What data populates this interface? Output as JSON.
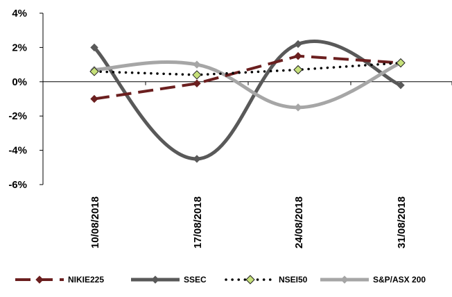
{
  "chart_data": {
    "type": "line",
    "categories": [
      "10/08/2018",
      "17/08/2018",
      "24/08/2018",
      "31/08/2018"
    ],
    "ylim": [
      -0.06,
      0.04
    ],
    "yticks": [
      -0.06,
      -0.04,
      -0.02,
      0,
      0.02,
      0.04
    ],
    "ytick_labels": [
      "-6%",
      "-4%",
      "-2%",
      "0%",
      "2%",
      "4%"
    ],
    "grid": false,
    "legend": "bottom",
    "series": [
      {
        "name": "NIKIE225",
        "values": [
          -0.01,
          -0.001,
          0.015,
          0.011
        ],
        "color": "#6b1f1f",
        "style": "dashed",
        "marker": "diamond"
      },
      {
        "name": "SSEC",
        "values": [
          0.02,
          -0.045,
          0.022,
          -0.002
        ],
        "color": "#595959",
        "style": "solid",
        "marker": "diamond"
      },
      {
        "name": "NSEI50",
        "values": [
          0.006,
          0.004,
          0.007,
          0.011
        ],
        "color": "#000000",
        "style": "dotted",
        "marker": "diamond-green"
      },
      {
        "name": "S&P/ASX 200",
        "values": [
          0.007,
          0.01,
          -0.015,
          0.011
        ],
        "color": "#a6a6a6",
        "style": "solid",
        "marker": "diamond"
      }
    ]
  }
}
